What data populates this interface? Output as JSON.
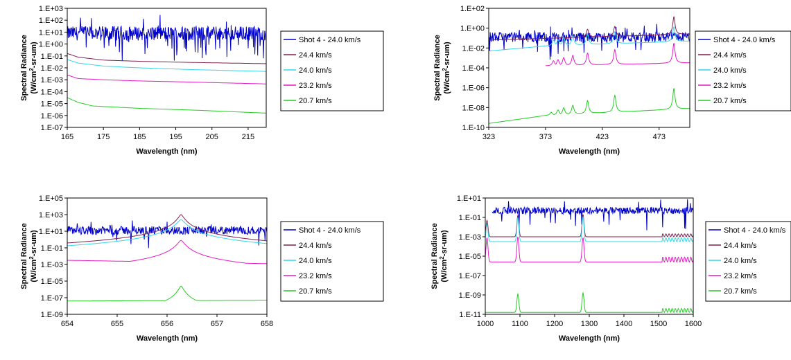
{
  "chart_data": [
    {
      "type": "line",
      "xlabel": "Wavelength (nm)",
      "ylabel_line1": "Spectral Radiance",
      "ylabel_line2_pre": "(W/cm",
      "ylabel_line2_sup": "2",
      "ylabel_line2_post": "-sr-um)",
      "xlim": [
        165,
        220
      ],
      "xticks": [
        165,
        175,
        185,
        195,
        205,
        215
      ],
      "ylog": true,
      "ylim_exp": [
        -7,
        3
      ],
      "yticks": [
        "1.E-07",
        "1.E-06",
        "1.E-05",
        "1.E-04",
        "1.E-03",
        "1.E-02",
        "1.E-01",
        "1.E+00",
        "1.E+01",
        "1.E+02",
        "1.E+03"
      ],
      "grid": false,
      "legend_position": "right",
      "series": [
        {
          "name": "Shot 4 - 24.0 km/s",
          "color": "#0000cc",
          "kind": "noisy",
          "base_exp": 0.9,
          "noise": 0.6,
          "dips": 0.08,
          "x_start": 165,
          "x_end": 220
        },
        {
          "name": "24.4 km/s",
          "color": "#7f1f4f",
          "points": [
            [
              165,
              -0.8
            ],
            [
              168,
              -1.1
            ],
            [
              175,
              -1.35
            ],
            [
              185,
              -1.45
            ],
            [
              200,
              -1.55
            ],
            [
              220,
              -1.65
            ]
          ]
        },
        {
          "name": "24.0 km/s",
          "color": "#33d6e8",
          "points": [
            [
              165,
              -1.3
            ],
            [
              168,
              -1.6
            ],
            [
              175,
              -1.85
            ],
            [
              185,
              -2.0
            ],
            [
              200,
              -2.15
            ],
            [
              220,
              -2.3
            ]
          ]
        },
        {
          "name": "23.2 km/s",
          "color": "#e617c7",
          "points": [
            [
              165,
              -2.6
            ],
            [
              168,
              -2.9
            ],
            [
              175,
              -3.0
            ],
            [
              185,
              -3.1
            ],
            [
              200,
              -3.2
            ],
            [
              220,
              -3.35
            ]
          ]
        },
        {
          "name": "20.7 km/s",
          "color": "#22cc22",
          "points": [
            [
              165,
              -4.5
            ],
            [
              168,
              -4.9
            ],
            [
              172,
              -5.2
            ],
            [
              185,
              -5.4
            ],
            [
              200,
              -5.55
            ],
            [
              220,
              -5.8
            ]
          ]
        }
      ]
    },
    {
      "type": "line",
      "xlabel": "Wavelength (nm)",
      "ylabel_line1": "Spectral Radiance",
      "ylabel_line2_pre": "(W/cm",
      "ylabel_line2_sup": "2",
      "ylabel_line2_post": "-sr-um)",
      "xlim": [
        323,
        500
      ],
      "xticks": [
        323,
        373,
        423,
        473
      ],
      "ylog": true,
      "ylim_exp": [
        -10,
        2
      ],
      "yticks": [
        "1.E-10",
        "1.E-08",
        "1.E-06",
        "1.E-04",
        "1.E-02",
        "1.E+00",
        "1.E+02"
      ],
      "grid": false,
      "legend_position": "right",
      "series": [
        {
          "name": "Shot 4 - 24.0 km/s",
          "color": "#0000cc",
          "kind": "noisy",
          "base_exp": -0.9,
          "noise": 0.5,
          "dips": 0.05,
          "x_start": 323,
          "x_end": 500
        },
        {
          "name": "24.4 km/s",
          "color": "#7f1f4f",
          "kind": "peaks",
          "base": [
            [
              323,
              -1.2
            ],
            [
              500,
              -0.6
            ]
          ],
          "peaks": [
            [
              410,
              0.8
            ],
            [
              434,
              1.0
            ],
            [
              486,
              1.8
            ]
          ],
          "x_start": 323,
          "x_end": 500
        },
        {
          "name": "24.0 km/s",
          "color": "#33d6e8",
          "kind": "peaks",
          "base": [
            [
              323,
              -2.3
            ],
            [
              373,
              -1.8
            ],
            [
              500,
              -1.3
            ]
          ],
          "peaks": [
            [
              380,
              0.6
            ],
            [
              384,
              0.6
            ],
            [
              389,
              0.8
            ],
            [
              397,
              0.9
            ],
            [
              410,
              1.1
            ],
            [
              434,
              1.2
            ],
            [
              486,
              1.5
            ]
          ],
          "x_start": 323,
          "x_end": 500
        },
        {
          "name": "23.2 km/s",
          "color": "#e617c7",
          "kind": "peaks",
          "base": [
            [
              373,
              -3.8
            ],
            [
              500,
              -3.5
            ]
          ],
          "peaks": [
            [
              380,
              0.5
            ],
            [
              384,
              0.6
            ],
            [
              389,
              0.8
            ],
            [
              397,
              1.0
            ],
            [
              410,
              1.2
            ],
            [
              434,
              1.5
            ],
            [
              486,
              2.0
            ]
          ],
          "x_start": 373,
          "x_end": 500
        },
        {
          "name": "20.7 km/s",
          "color": "#22cc22",
          "kind": "peaks",
          "base": [
            [
              323,
              -9.6
            ],
            [
              373,
              -8.8
            ],
            [
              500,
              -8.1
            ]
          ],
          "peaks": [
            [
              378,
              0.3
            ],
            [
              384,
              0.5
            ],
            [
              389,
              0.7
            ],
            [
              397,
              0.9
            ],
            [
              410,
              1.3
            ],
            [
              434,
              1.7
            ],
            [
              486,
              2.1
            ]
          ],
          "x_start": 323,
          "x_end": 500
        }
      ]
    },
    {
      "type": "line",
      "xlabel": "Wavelength (nm)",
      "ylabel_line1": "Spectral Radiance",
      "ylabel_line2_pre": "(W/cm",
      "ylabel_line2_sup": "2",
      "ylabel_line2_post": "-sr-um)",
      "xlim": [
        654,
        658
      ],
      "xticks": [
        654,
        655,
        656,
        657,
        658
      ],
      "ylog": true,
      "ylim_exp": [
        -9,
        5
      ],
      "yticks": [
        "1.E-09",
        "1.E-07",
        "1.E-05",
        "1.E-03",
        "1.E-01",
        "1.E+01",
        "1.E+03",
        "1.E+05"
      ],
      "grid": false,
      "legend_position": "right",
      "series": [
        {
          "name": "Shot 4 - 24.0 km/s",
          "color": "#0000cc",
          "kind": "noisy",
          "base_exp": 1.1,
          "noise": 0.5,
          "dips": 0.02,
          "x_start": 654,
          "x_end": 658
        },
        {
          "name": "24.4 km/s",
          "color": "#7f1f4f",
          "kind": "lorentz",
          "center": 656.28,
          "floor_left": -0.9,
          "floor_right": -0.6,
          "peak": 3.0,
          "width": 0.06,
          "x_start": 654,
          "x_end": 658
        },
        {
          "name": "24.0 km/s",
          "color": "#33d6e8",
          "kind": "lorentz",
          "center": 656.28,
          "floor_left": -1.4,
          "floor_right": -1.5,
          "peak": 2.4,
          "width": 0.08,
          "x_start": 654,
          "x_end": 658
        },
        {
          "name": "23.2 km/s",
          "color": "#e617c7",
          "kind": "lorentz",
          "center": 656.28,
          "floor_left": -2.5,
          "floor_right": -2.9,
          "peak": -0.1,
          "width": 0.07,
          "x_start": 654,
          "x_end": 658
        },
        {
          "name": "20.7 km/s",
          "color": "#22cc22",
          "kind": "lorentz",
          "center": 656.28,
          "floor_left": -7.4,
          "floor_right": -7.3,
          "peak": -5.6,
          "width": 0.05,
          "x_start": 654,
          "x_end": 658
        }
      ]
    },
    {
      "type": "line",
      "xlabel": "Wavelength (nm)",
      "ylabel_line1": "Spectral Radiance",
      "ylabel_line2_pre": "(W/cm",
      "ylabel_line2_sup": "2",
      "ylabel_line2_post": "-sr-um)",
      "xlim": [
        1000,
        1600
      ],
      "xticks": [
        1000,
        1100,
        1200,
        1300,
        1400,
        1500,
        1600
      ],
      "ylog": true,
      "ylim_exp": [
        -11,
        1
      ],
      "yticks": [
        "1.E-11",
        "1.E-09",
        "1.E-07",
        "1.E-05",
        "1.E-03",
        "1.E-01",
        "1.E+01"
      ],
      "grid": false,
      "legend_position": "right",
      "series": [
        {
          "name": "Shot 4 - 24.0 km/s",
          "color": "#0000cc",
          "kind": "noisy",
          "base_exp": -0.3,
          "noise": 0.35,
          "dips": 0.04,
          "x_start": 1020,
          "x_end": 1600
        },
        {
          "name": "24.4 km/s",
          "color": "#7f1f4f",
          "kind": "lines4",
          "floor": -3.0,
          "peaks": [
            [
              1005,
              1.7
            ],
            [
              1094,
              2.2
            ],
            [
              1282,
              2.3
            ]
          ],
          "ripple": 0.3,
          "x_start": 1000,
          "x_end": 1600
        },
        {
          "name": "24.0 km/s",
          "color": "#33d6e8",
          "kind": "lines4",
          "floor": -3.5,
          "peaks": [
            [
              1005,
              1.8
            ],
            [
              1094,
              2.5
            ],
            [
              1282,
              2.6
            ]
          ],
          "ripple": 0.4,
          "x_start": 1000,
          "x_end": 1600
        },
        {
          "name": "23.2 km/s",
          "color": "#e617c7",
          "kind": "lines4",
          "floor": -5.6,
          "peaks": [
            [
              1005,
              2.5
            ],
            [
              1094,
              2.6
            ],
            [
              1282,
              2.5
            ]
          ],
          "ripple": 0.5,
          "x_start": 1000,
          "x_end": 1600
        },
        {
          "name": "20.7 km/s",
          "color": "#22cc22",
          "kind": "lines4",
          "floor": -10.8,
          "peaks": [
            [
              1094,
              1.9
            ],
            [
              1282,
              2.0
            ]
          ],
          "ripple": 0.4,
          "x_start": 1000,
          "x_end": 1600
        }
      ]
    }
  ]
}
